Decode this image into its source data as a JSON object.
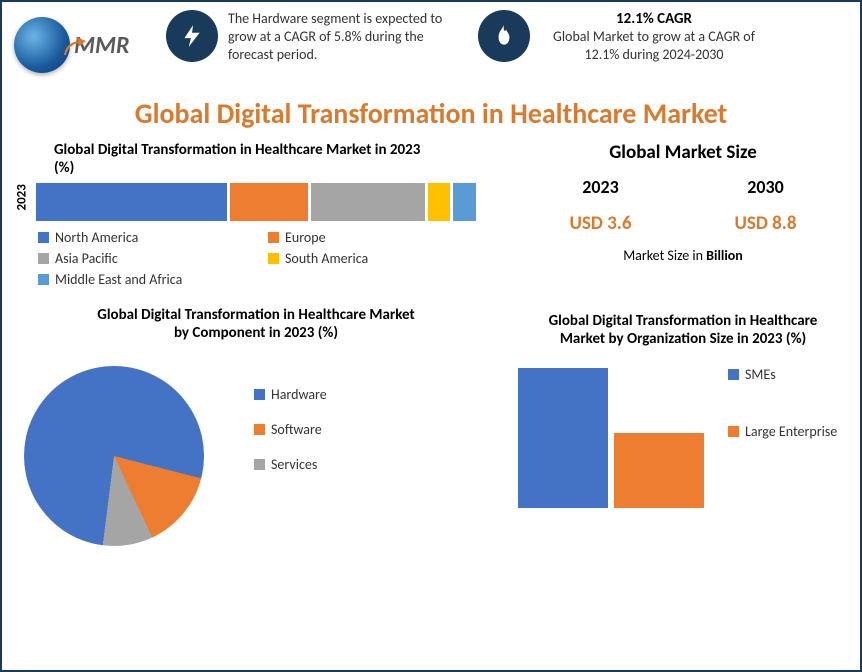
{
  "logo": {
    "text": "MMR"
  },
  "callouts": [
    {
      "icon": "bolt",
      "text": "The Hardware segment is expected to grow at a CAGR of 5.8% during the forecast period."
    },
    {
      "icon": "flame",
      "title": "12.1% CAGR",
      "text": "Global Market to grow at a CAGR of 12.1% during 2024-2030"
    }
  ],
  "main_title": "Global Digital Transformation in Healthcare Market",
  "stacked_bar": {
    "title": "Global Digital Transformation in Healthcare Market in 2023 (%)",
    "y_label": "2023",
    "segments": [
      {
        "label": "North America",
        "value": 42,
        "color": "#4472c4"
      },
      {
        "label": "Europe",
        "value": 17,
        "color": "#ed7d31"
      },
      {
        "label": "Asia Pacific",
        "value": 25,
        "color": "#a5a5a5"
      },
      {
        "label": "South America",
        "value": 5,
        "color": "#ffc000"
      },
      {
        "label": "Middle East and Africa",
        "value": 5,
        "color": "#5b9bd5"
      }
    ],
    "gap_color": "#ffffff"
  },
  "market_size": {
    "title": "Global Market Size",
    "items": [
      {
        "year": "2023",
        "value": "USD 3.6"
      },
      {
        "year": "2030",
        "value": "USD 8.8"
      }
    ],
    "note_prefix": "Market Size in ",
    "note_bold": "Billion"
  },
  "pie": {
    "title": "Global Digital Transformation in Healthcare Market by Component in 2023 (%)",
    "slices": [
      {
        "label": "Hardware",
        "value": 77,
        "color": "#4472c4"
      },
      {
        "label": "Software",
        "value": 14,
        "color": "#ed7d31"
      },
      {
        "label": "Services",
        "value": 9,
        "color": "#a5a5a5"
      }
    ]
  },
  "bar_chart": {
    "title": "Global Digital Transformation in Healthcare Market by Organization Size in 2023 (%)",
    "bars": [
      {
        "label": "SMEs",
        "value": 65,
        "color": "#4472c4"
      },
      {
        "label": "Large Enterprise",
        "value": 35,
        "color": "#ed7d31"
      }
    ],
    "max_height": 140
  },
  "styling": {
    "border_color": "#1a3a5c",
    "title_color": "#d97a2e",
    "value_color": "#d97a2e",
    "background": "#ffffff",
    "title_fontsize": 28,
    "chart_title_fontsize": 15,
    "body_fontsize": 14
  }
}
